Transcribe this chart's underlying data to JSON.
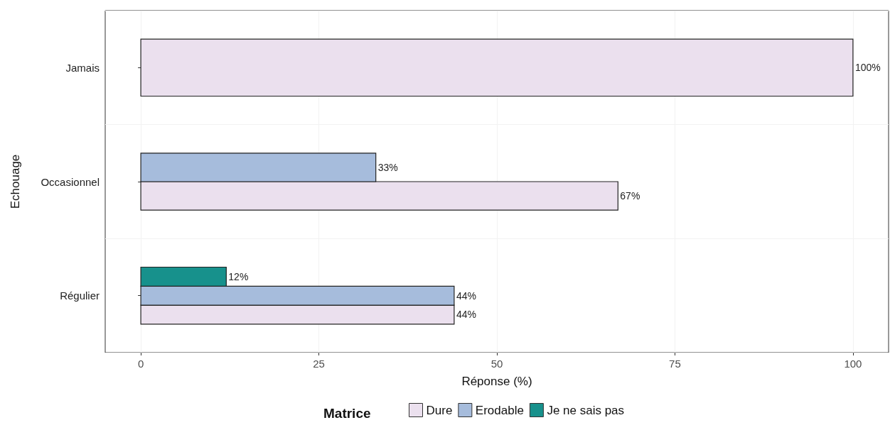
{
  "chart_data": {
    "type": "bar",
    "orientation": "horizontal",
    "xlabel": "Réponse (%)",
    "ylabel": "Echouage",
    "legend_title": "Matrice",
    "legend": "bottom",
    "grid": true,
    "categories": [
      "Jamais",
      "Occasionnel",
      "Régulier"
    ],
    "xlim": [
      -5,
      105
    ],
    "xticks": [
      0,
      25,
      50,
      75,
      100
    ],
    "series": [
      {
        "name": "Dure",
        "color": "#ebe0ee",
        "values": [
          100,
          67,
          44
        ],
        "value_labels": [
          "100%",
          "67%",
          "44%"
        ]
      },
      {
        "name": "Erodable",
        "color": "#a6bcdc",
        "values": [
          null,
          33,
          44
        ],
        "value_labels": [
          null,
          "33%",
          "44%"
        ]
      },
      {
        "name": "Je ne sais pas",
        "color": "#17918c",
        "values": [
          null,
          null,
          12
        ],
        "value_labels": [
          null,
          null,
          "12%"
        ]
      }
    ]
  }
}
